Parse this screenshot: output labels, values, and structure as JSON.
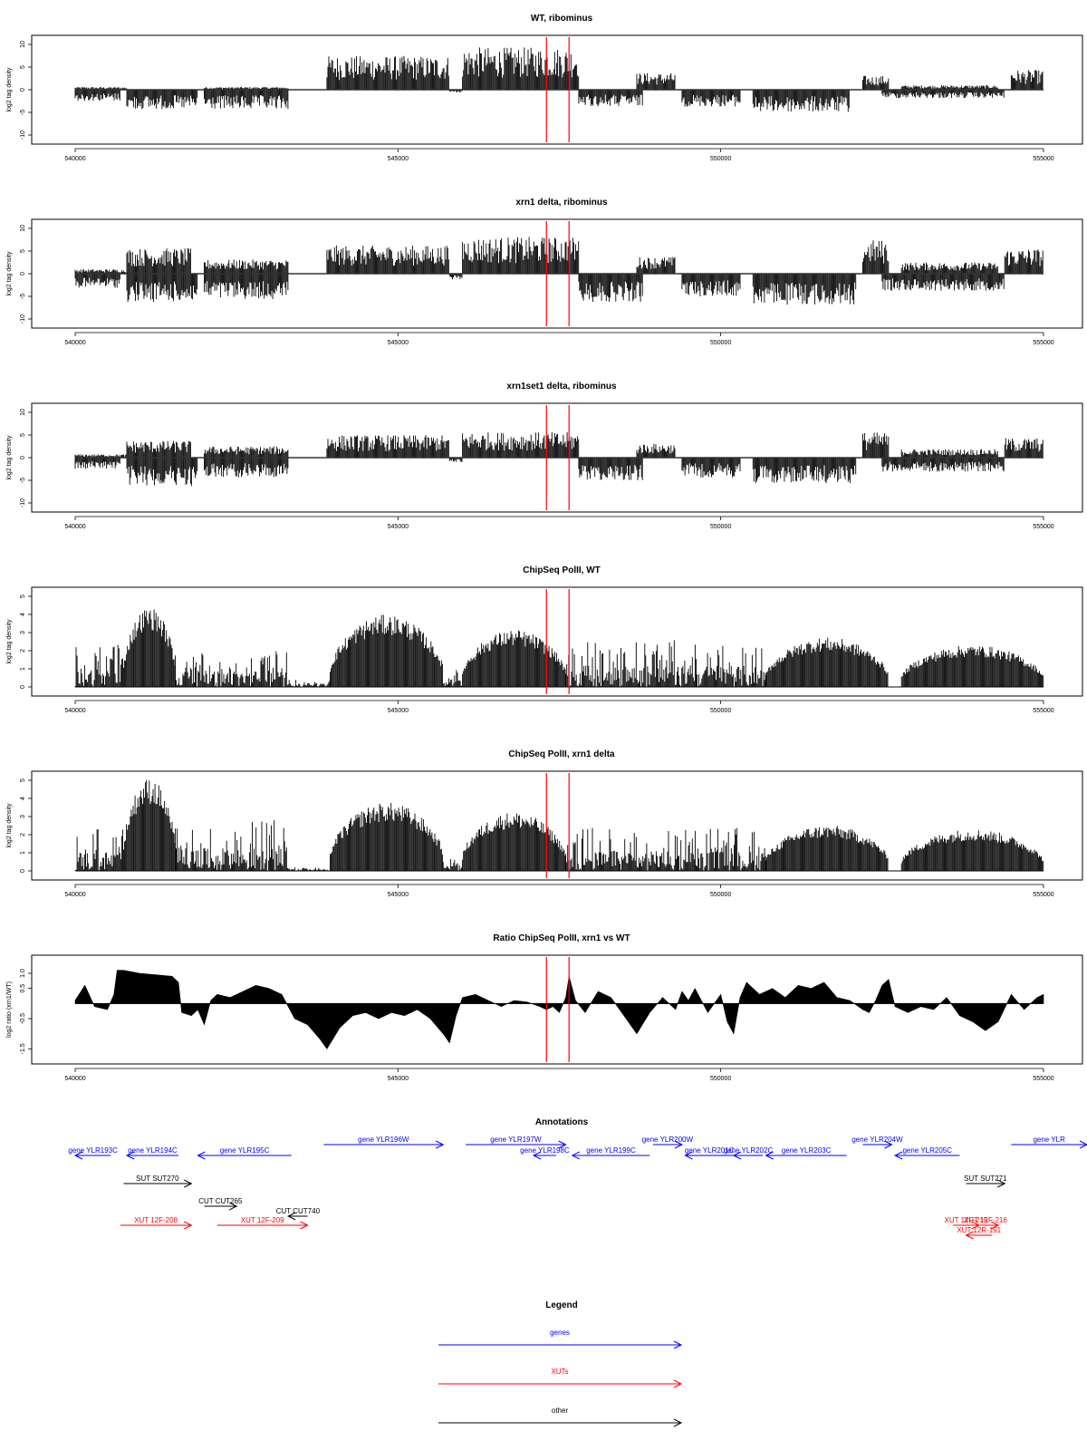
{
  "colors": {
    "gene": "#0000ff",
    "xut": "#ff0000",
    "other": "#000000",
    "marker": "#ff0000",
    "signal": "#000000"
  },
  "chart_data": [
    {
      "type": "bar",
      "title": "WT, ribominus",
      "ylabel": "log2 tag density",
      "xlim": [
        540000,
        555000
      ],
      "ylim": [
        -10,
        10
      ],
      "xticks": [
        "540000",
        "545000",
        "550000",
        "555000"
      ],
      "yticks": [
        "10",
        "5",
        "0",
        "-5",
        "-10"
      ],
      "markers_x": [
        547300,
        547650
      ],
      "plus_segments": [
        [
          540000,
          540800,
          0.5
        ],
        [
          542000,
          543300,
          0.5
        ],
        [
          543900,
          545800,
          6
        ],
        [
          546000,
          547800,
          7.5
        ],
        [
          548700,
          549300,
          3
        ],
        [
          552200,
          552600,
          2.5
        ],
        [
          552800,
          554300,
          0.8
        ],
        [
          554500,
          555000,
          3.5
        ]
      ],
      "minus_segments": [
        [
          540000,
          540700,
          -2
        ],
        [
          540800,
          541900,
          -3.5
        ],
        [
          542000,
          543300,
          -3.5
        ],
        [
          545800,
          546000,
          -0.5
        ],
        [
          547800,
          548800,
          -3
        ],
        [
          549400,
          550300,
          -3
        ],
        [
          550500,
          552000,
          -4
        ],
        [
          552500,
          554400,
          -1.5
        ]
      ]
    },
    {
      "type": "bar",
      "title": "xrn1 delta, ribominus",
      "ylabel": "log2 tag density",
      "xlim": [
        540000,
        555000
      ],
      "ylim": [
        -10,
        10
      ],
      "xticks": [
        "540000",
        "545000",
        "550000",
        "555000"
      ],
      "yticks": [
        "10",
        "5",
        "0",
        "-5",
        "-10"
      ],
      "markers_x": [
        547300,
        547650
      ],
      "plus_segments": [
        [
          540000,
          540800,
          0.8
        ],
        [
          540800,
          541800,
          4.5
        ],
        [
          542000,
          543300,
          2.5
        ],
        [
          543900,
          545800,
          5
        ],
        [
          546000,
          547800,
          6.5
        ],
        [
          548700,
          549300,
          3
        ],
        [
          552200,
          552600,
          6
        ],
        [
          552800,
          554300,
          2
        ],
        [
          554400,
          555000,
          4.5
        ]
      ],
      "minus_segments": [
        [
          540000,
          540700,
          -2.5
        ],
        [
          540800,
          541900,
          -5
        ],
        [
          542000,
          543300,
          -4.5
        ],
        [
          545800,
          546000,
          -1
        ],
        [
          547800,
          548800,
          -5
        ],
        [
          549400,
          550300,
          -4
        ],
        [
          550500,
          552100,
          -5.5
        ],
        [
          552500,
          554400,
          -3
        ]
      ]
    },
    {
      "type": "bar",
      "title": "xrn1set1 delta, ribominus",
      "ylabel": "log2 tag density",
      "xlim": [
        540000,
        555000
      ],
      "ylim": [
        -10,
        10
      ],
      "xticks": [
        "540000",
        "545000",
        "550000",
        "555000"
      ],
      "yticks": [
        "10",
        "5",
        "0",
        "-5",
        "-10"
      ],
      "markers_x": [
        547300,
        547650
      ],
      "plus_segments": [
        [
          540000,
          540800,
          0.6
        ],
        [
          540800,
          541800,
          3
        ],
        [
          542000,
          543300,
          2
        ],
        [
          543900,
          545800,
          4
        ],
        [
          546000,
          547800,
          4.5
        ],
        [
          548700,
          549300,
          2.5
        ],
        [
          552200,
          552600,
          4.5
        ],
        [
          552800,
          554300,
          1.5
        ],
        [
          554400,
          555000,
          3.5
        ]
      ],
      "minus_segments": [
        [
          540000,
          540700,
          -2
        ],
        [
          540800,
          541900,
          -5
        ],
        [
          542000,
          543300,
          -3.5
        ],
        [
          545800,
          546000,
          -0.8
        ],
        [
          547800,
          548800,
          -4
        ],
        [
          549400,
          550300,
          -3.5
        ],
        [
          550500,
          552100,
          -4.5
        ],
        [
          552500,
          554400,
          -2.5
        ]
      ]
    },
    {
      "type": "bar",
      "title": "ChipSeq PolII, WT",
      "ylabel": "log2 tag density",
      "xlim": [
        540000,
        555000
      ],
      "ylim": [
        0,
        5
      ],
      "xticks": [
        "540000",
        "545000",
        "550000",
        "555000"
      ],
      "yticks": [
        "5",
        "4",
        "3",
        "2",
        "1",
        "0"
      ],
      "markers_x": [
        547300,
        547650
      ],
      "hills": [
        [
          540750,
          541550,
          4.2
        ],
        [
          543950,
          545700,
          3.8
        ],
        [
          546000,
          547600,
          3.0
        ],
        [
          550700,
          552600,
          2.6
        ],
        [
          552800,
          555000,
          2.2
        ]
      ],
      "background": [
        [
          540000,
          540750,
          1.2
        ],
        [
          541550,
          543300,
          1.0
        ],
        [
          543300,
          543950,
          0.2
        ],
        [
          545700,
          546000,
          0.5
        ],
        [
          547600,
          550700,
          1.3
        ]
      ]
    },
    {
      "type": "bar",
      "title": "ChipSeq PolII, xrn1 delta",
      "ylabel": "log2 tag density",
      "xlim": [
        540000,
        555000
      ],
      "ylim": [
        0,
        5
      ],
      "xticks": [
        "540000",
        "545000",
        "550000",
        "555000"
      ],
      "yticks": [
        "5",
        "4",
        "3",
        "2",
        "1",
        "0"
      ],
      "markers_x": [
        547300,
        547650
      ],
      "hills": [
        [
          540750,
          541550,
          4.9
        ],
        [
          543950,
          545700,
          3.6
        ],
        [
          546000,
          547600,
          3.1
        ],
        [
          550700,
          552600,
          2.4
        ],
        [
          552800,
          555000,
          2.2
        ]
      ],
      "background": [
        [
          540000,
          540750,
          1.2
        ],
        [
          541550,
          543300,
          1.4
        ],
        [
          543300,
          543950,
          0.1
        ],
        [
          545700,
          546000,
          0.4
        ],
        [
          547600,
          550700,
          1.2
        ]
      ]
    },
    {
      "type": "area",
      "title": "Ratio ChipSeq PolII, xrn1 vs WT",
      "ylabel": "log2 ratio (xrn1/WT)",
      "xlim": [
        540000,
        555000
      ],
      "ylim": [
        -1.7,
        1.3
      ],
      "xticks": [
        "540000",
        "545000",
        "550000",
        "555000"
      ],
      "yticks": [
        "1.0",
        "0.5",
        "-0.5",
        "-1.5"
      ],
      "markers_x": [
        547300,
        547650
      ],
      "x": [
        540000,
        540150,
        540300,
        540500,
        540600,
        540650,
        540750,
        541000,
        541500,
        541600,
        541650,
        541800,
        541900,
        542000,
        542100,
        542200,
        542400,
        542600,
        542800,
        543000,
        543200,
        543300,
        543400,
        543600,
        543800,
        543900,
        544100,
        544300,
        544500,
        544700,
        544900,
        545100,
        545300,
        545500,
        545700,
        545800,
        545900,
        546000,
        546200,
        546400,
        546600,
        546800,
        547000,
        547200,
        547300,
        547400,
        547500,
        547600,
        547650,
        547750,
        547900,
        548100,
        548300,
        548500,
        548700,
        548900,
        549100,
        549300,
        549400,
        549500,
        549600,
        549800,
        550000,
        550100,
        550200,
        550300,
        550400,
        550600,
        550800,
        551000,
        551200,
        551400,
        551600,
        551800,
        552000,
        552200,
        552300,
        552400,
        552500,
        552600,
        552700,
        552900,
        553100,
        553300,
        553500,
        553700,
        553900,
        554100,
        554300,
        554500,
        554700,
        554900,
        555000
      ],
      "y": [
        0.1,
        0.6,
        -0.1,
        -0.2,
        0.3,
        1.1,
        1.1,
        1.0,
        0.9,
        0.7,
        -0.3,
        -0.4,
        -0.2,
        -0.7,
        0.1,
        0.3,
        0.2,
        0.4,
        0.6,
        0.5,
        0.3,
        -0.1,
        -0.5,
        -0.7,
        -1.2,
        -1.5,
        -0.8,
        -0.4,
        -0.3,
        -0.5,
        -0.3,
        -0.4,
        -0.2,
        -0.5,
        -1.0,
        -1.3,
        -0.4,
        0.2,
        0.3,
        0.1,
        -0.1,
        0.1,
        0.05,
        -0.1,
        -0.2,
        -0.1,
        -0.3,
        0.2,
        0.9,
        0.1,
        -0.3,
        0.4,
        0.2,
        -0.4,
        -1.0,
        -0.3,
        0.2,
        -0.2,
        0.4,
        0.1,
        0.5,
        -0.3,
        0.3,
        -0.6,
        -1.0,
        0.2,
        0.7,
        0.3,
        0.5,
        0.2,
        0.6,
        0.5,
        0.7,
        0.2,
        0.1,
        -0.2,
        -0.3,
        0.1,
        0.6,
        0.8,
        -0.1,
        -0.3,
        -0.1,
        -0.2,
        0.2,
        -0.4,
        -0.6,
        -0.9,
        -0.6,
        0.3,
        -0.2,
        0.2,
        0.3
      ]
    }
  ],
  "annotations": {
    "title": "Annotations",
    "items": [
      {
        "label": "gene YLR193C",
        "type": "gene",
        "dir": "left",
        "x1": 540000,
        "x2": 540550,
        "row": 0
      },
      {
        "label": "gene YLR194C",
        "type": "gene",
        "dir": "left",
        "x1": 540800,
        "x2": 541600,
        "row": 0
      },
      {
        "label": "gene YLR195C",
        "type": "gene",
        "dir": "left",
        "x1": 541900,
        "x2": 543350,
        "row": 0
      },
      {
        "label": "gene YLR196W",
        "type": "gene",
        "dir": "right",
        "x1": 543850,
        "x2": 545700,
        "row": -1
      },
      {
        "label": "gene YLR197W",
        "type": "gene",
        "dir": "right",
        "x1": 546050,
        "x2": 547600,
        "row": -1
      },
      {
        "label": "gene YLR198C",
        "type": "gene",
        "dir": "left",
        "x1": 547100,
        "x2": 547450,
        "row": 0
      },
      {
        "label": "gene YLR199C",
        "type": "gene",
        "dir": "left",
        "x1": 547700,
        "x2": 548900,
        "row": 0
      },
      {
        "label": "gene YLR200W",
        "type": "gene",
        "dir": "right",
        "x1": 548950,
        "x2": 549400,
        "row": -1
      },
      {
        "label": "gene YLR201C",
        "type": "gene",
        "dir": "left",
        "x1": 549450,
        "x2": 550200,
        "row": 0
      },
      {
        "label": "gene YLR202C",
        "type": "gene",
        "dir": "left",
        "x1": 550200,
        "x2": 550650,
        "row": 0
      },
      {
        "label": "gene YLR203C",
        "type": "gene",
        "dir": "left",
        "x1": 550700,
        "x2": 551950,
        "row": 0
      },
      {
        "label": "gene YLR204W",
        "type": "gene",
        "dir": "right",
        "x1": 552200,
        "x2": 552650,
        "row": -1
      },
      {
        "label": "gene YLR205C",
        "type": "gene",
        "dir": "left",
        "x1": 552700,
        "x2": 553700,
        "row": 0
      },
      {
        "label": "gene YLR",
        "type": "gene",
        "dir": "right",
        "x1": 554500,
        "x2": 555700,
        "row": -1
      },
      {
        "label": "SUT SUT270",
        "type": "other",
        "dir": "right",
        "x1": 540750,
        "x2": 541800,
        "row": 1
      },
      {
        "label": "CUT CUT265",
        "type": "other",
        "dir": "right",
        "x1": 542000,
        "x2": 542500,
        "row": 2
      },
      {
        "label": "CUT CUT740",
        "type": "other",
        "dir": "left",
        "x1": 543300,
        "x2": 543600,
        "row": 3
      },
      {
        "label": "SUT SUT271",
        "type": "other",
        "dir": "right",
        "x1": 553800,
        "x2": 554400,
        "row": 1
      },
      {
        "label": "XUT 12F-208",
        "type": "xut",
        "dir": "right",
        "x1": 540700,
        "x2": 541800,
        "row": 4
      },
      {
        "label": "XUT 12F-209",
        "type": "xut",
        "dir": "right",
        "x1": 542200,
        "x2": 543600,
        "row": 4
      },
      {
        "label": "XUT 12F-215",
        "type": "xut",
        "dir": "right",
        "x1": 553600,
        "x2": 554000,
        "row": 4
      },
      {
        "label": "XUT 12F-216",
        "type": "xut",
        "dir": "right",
        "x1": 553900,
        "x2": 554300,
        "row": 4
      },
      {
        "label": "XUT 12R-191",
        "type": "xut",
        "dir": "left",
        "x1": 553800,
        "x2": 554200,
        "row": 5
      }
    ]
  },
  "legend": {
    "title": "Legend",
    "entries": [
      {
        "label": "genes",
        "type": "gene"
      },
      {
        "label": "XUTs",
        "type": "xut"
      },
      {
        "label": "other",
        "type": "other"
      }
    ]
  }
}
